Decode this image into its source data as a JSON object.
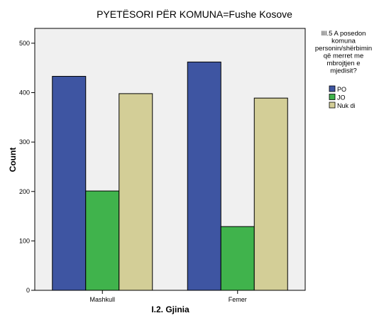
{
  "chart_data": {
    "type": "bar",
    "title": "PYETËSORI PËR KOMUNA=Fushe Kosove",
    "xlabel": "I.2. Gjinia",
    "ylabel": "Count",
    "categories": [
      "Mashkull",
      "Femer"
    ],
    "series": [
      {
        "name": "PO",
        "values": [
          433,
          462
        ],
        "color": "#3e55a2"
      },
      {
        "name": "JO",
        "values": [
          201,
          129
        ],
        "color": "#40b34c"
      },
      {
        "name": "Nuk di",
        "values": [
          398,
          389
        ],
        "color": "#d3ce97"
      }
    ],
    "ylim": [
      0,
      530
    ],
    "yticks": [
      0,
      100,
      200,
      300,
      400,
      500
    ],
    "grid": false,
    "plot_background": "#f0f0f0",
    "legend": {
      "title_lines": [
        "III.5 A posedon",
        "komuna",
        "personin/shërbimin",
        "që merret me",
        "mbrojtjen e",
        "mjedisit?"
      ],
      "placement": "right"
    }
  }
}
